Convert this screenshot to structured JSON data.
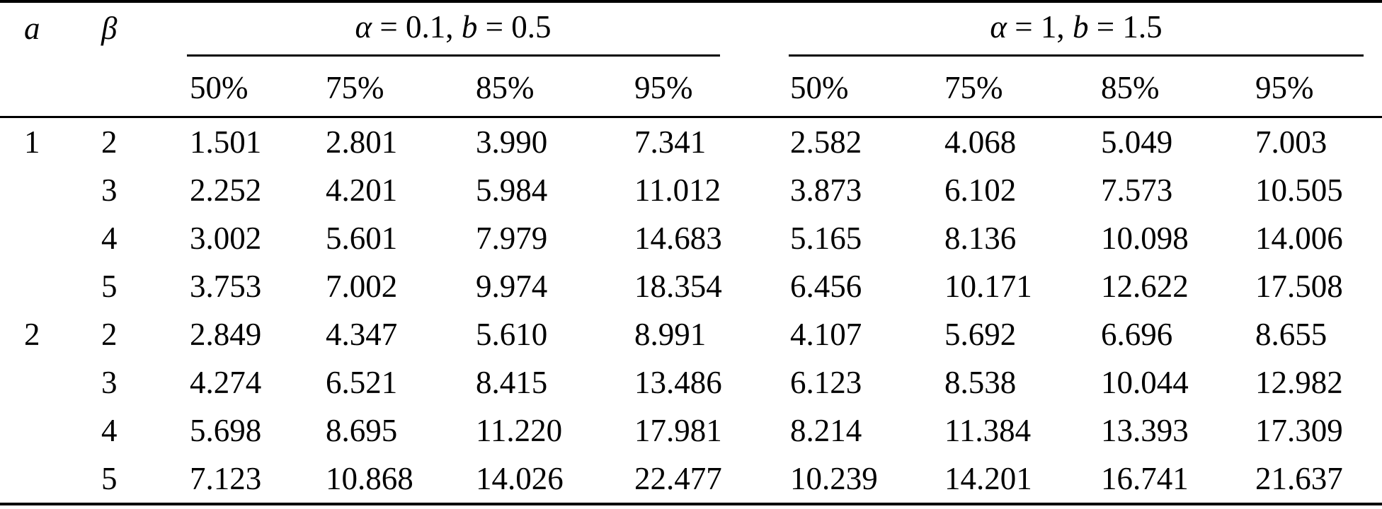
{
  "table": {
    "corner": {
      "col_a": "a",
      "col_beta": "β"
    },
    "groups": [
      {
        "var1": "α",
        "mid1": " = 0.1, ",
        "var2": "b",
        "mid2": " = 0.5",
        "quantiles": [
          "50%",
          "75%",
          "85%",
          "95%"
        ]
      },
      {
        "var1": "α",
        "mid1": " = 1, ",
        "var2": "b",
        "mid2": " = 1.5",
        "quantiles": [
          "50%",
          "75%",
          "85%",
          "95%"
        ]
      }
    ],
    "rows": [
      {
        "a": "1",
        "beta": "2",
        "q1": [
          "1.501",
          "2.801",
          "3.990",
          "7.341"
        ],
        "q2": [
          "2.582",
          "4.068",
          "5.049",
          "7.003"
        ]
      },
      {
        "a": "",
        "beta": "3",
        "q1": [
          "2.252",
          "4.201",
          "5.984",
          "11.012"
        ],
        "q2": [
          "3.873",
          "6.102",
          "7.573",
          "10.505"
        ]
      },
      {
        "a": "",
        "beta": "4",
        "q1": [
          "3.002",
          "5.601",
          "7.979",
          "14.683"
        ],
        "q2": [
          "5.165",
          "8.136",
          "10.098",
          "14.006"
        ]
      },
      {
        "a": "",
        "beta": "5",
        "q1": [
          "3.753",
          "7.002",
          "9.974",
          "18.354"
        ],
        "q2": [
          "6.456",
          "10.171",
          "12.622",
          "17.508"
        ]
      },
      {
        "a": "2",
        "beta": "2",
        "q1": [
          "2.849",
          "4.347",
          "5.610",
          "8.991"
        ],
        "q2": [
          "4.107",
          "5.692",
          "6.696",
          "8.655"
        ]
      },
      {
        "a": "",
        "beta": "3",
        "q1": [
          "4.274",
          "6.521",
          "8.415",
          "13.486"
        ],
        "q2": [
          "6.123",
          "8.538",
          "10.044",
          "12.982"
        ]
      },
      {
        "a": "",
        "beta": "4",
        "q1": [
          "5.698",
          "8.695",
          "11.220",
          "17.981"
        ],
        "q2": [
          "8.214",
          "11.384",
          "13.393",
          "17.309"
        ]
      },
      {
        "a": "",
        "beta": "5",
        "q1": [
          "7.123",
          "10.868",
          "14.026",
          "22.477"
        ],
        "q2": [
          "10.239",
          "14.201",
          "16.741",
          "21.637"
        ]
      }
    ]
  },
  "colors": {
    "text": "#000000",
    "rule": "#000000",
    "background": "#ffffff"
  }
}
